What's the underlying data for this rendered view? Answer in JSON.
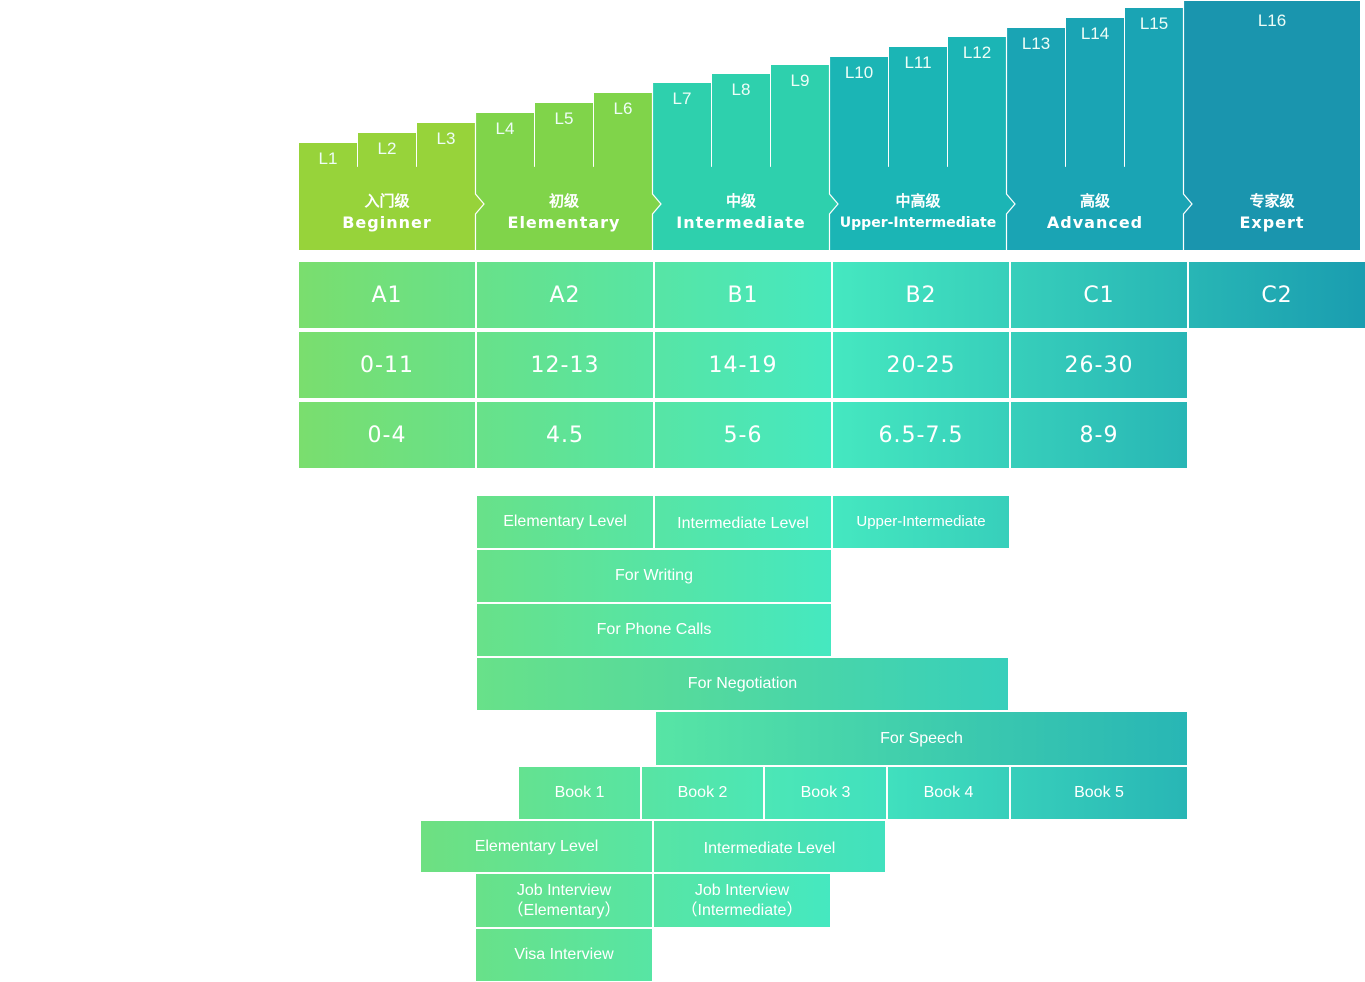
{
  "colors": {
    "beginner": "#97d33a",
    "elementary": "#80d44a",
    "intermediate": "#2ed0ad",
    "upper_intermediate": "#1bb5b5",
    "advanced": "#1aa4b4",
    "expert": "#1a95ae",
    "grid_start": "#7ade6e",
    "grid_mid": "#45e8c0",
    "grid_end": "#1a9db0"
  },
  "levels": [
    "L1",
    "L2",
    "L3",
    "L4",
    "L5",
    "L6",
    "L7",
    "L8",
    "L9",
    "L10",
    "L11",
    "L12",
    "L13",
    "L14",
    "L15",
    "L16"
  ],
  "groups": [
    {
      "zh": "入门级",
      "en": "Beginner"
    },
    {
      "zh": "初级",
      "en": "Elementary"
    },
    {
      "zh": "中级",
      "en": "Intermediate"
    },
    {
      "zh": "中高级",
      "en": "Upper-Intermediate"
    },
    {
      "zh": "高级",
      "en": "Advanced"
    },
    {
      "zh": "专家级",
      "en": "Expert"
    }
  ],
  "cefr": [
    "A1",
    "A2",
    "B1",
    "B2",
    "C1",
    "C2"
  ],
  "scores_row1": [
    "0-11",
    "12-13",
    "14-19",
    "20-25",
    "26-30"
  ],
  "scores_row2": [
    "0-4",
    "4.5",
    "5-6",
    "6.5-7.5",
    "8-9"
  ],
  "courses": {
    "row1": [
      "Elementary Level",
      "Intermediate Level",
      "Upper-Intermediate"
    ],
    "writing": "For Writing",
    "phone": "For Phone Calls",
    "negotiation": "For Negotiation",
    "speech": "For Speech",
    "books": [
      "Book 1",
      "Book 2",
      "Book 3",
      "Book 4",
      "Book 5"
    ],
    "row_levels": [
      "Elementary Level",
      "Intermediate Level"
    ],
    "job_interview": [
      "Job Interview\n(Elementary)",
      "Job Interview\n(Intermediate)"
    ],
    "job_line1": [
      "Job Interview",
      "Job Interview"
    ],
    "job_line2": [
      "（Elementary）",
      "（Intermediate）"
    ],
    "visa": "Visa Interview"
  }
}
